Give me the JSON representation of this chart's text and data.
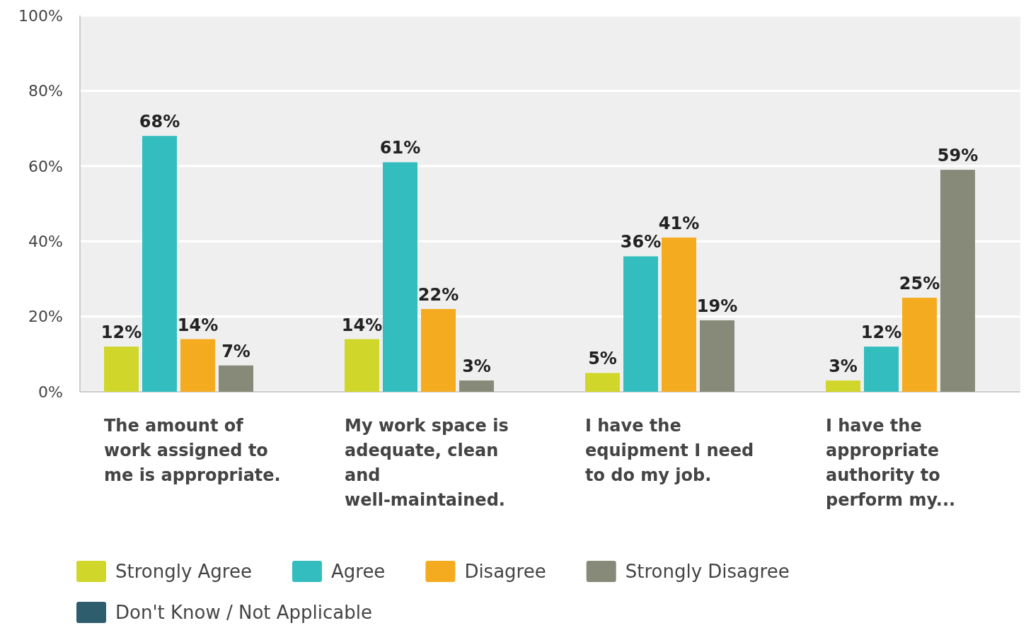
{
  "chart_data": {
    "type": "bar",
    "categories": [
      "The amount of work assigned to me is appropriate.",
      "My work space is adequate, clean and well-maintained.",
      "I have the equipment I need to do my job.",
      "I have the appropriate authority to perform my..."
    ],
    "series": [
      {
        "name": "Strongly Agree",
        "color": "#d0d62a",
        "values": [
          12,
          14,
          5,
          3
        ],
        "value_labels": [
          "12%",
          "14%",
          "5%",
          "3%"
        ]
      },
      {
        "name": "Agree",
        "color": "#33bdbf",
        "values": [
          68,
          61,
          36,
          12
        ],
        "value_labels": [
          "68%",
          "61%",
          "36%",
          "12%"
        ]
      },
      {
        "name": "Disagree",
        "color": "#f5ab1f",
        "values": [
          14,
          22,
          41,
          25
        ],
        "value_labels": [
          "14%",
          "22%",
          "41%",
          "25%"
        ]
      },
      {
        "name": "Strongly Disagree",
        "color": "#878a78",
        "values": [
          7,
          3,
          19,
          59
        ],
        "value_labels": [
          "7%",
          "3%",
          "19%",
          "59%"
        ]
      },
      {
        "name": "Don't Know / Not Applicable",
        "color": "#2e5e6e",
        "values": [
          null,
          null,
          null,
          null
        ]
      }
    ],
    "ylim": [
      0,
      100
    ],
    "yticks": [
      {
        "value": 0,
        "label": "0%"
      },
      {
        "value": 20,
        "label": "20%"
      },
      {
        "value": 40,
        "label": "40%"
      },
      {
        "value": 60,
        "label": "60%"
      },
      {
        "value": 80,
        "label": "80%"
      },
      {
        "value": 100,
        "label": "100%"
      }
    ],
    "grid": "y",
    "legend": "bottom"
  }
}
